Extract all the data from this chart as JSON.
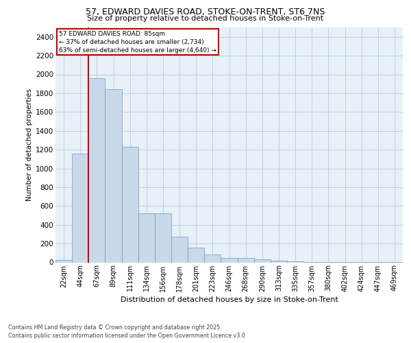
{
  "title_line1": "57, EDWARD DAVIES ROAD, STOKE-ON-TRENT, ST6 7NS",
  "title_line2": "Size of property relative to detached houses in Stoke-on-Trent",
  "xlabel": "Distribution of detached houses by size in Stoke-on-Trent",
  "ylabel": "Number of detached properties",
  "categories": [
    "22sqm",
    "44sqm",
    "67sqm",
    "89sqm",
    "111sqm",
    "134sqm",
    "156sqm",
    "178sqm",
    "201sqm",
    "223sqm",
    "246sqm",
    "268sqm",
    "290sqm",
    "313sqm",
    "335sqm",
    "357sqm",
    "380sqm",
    "402sqm",
    "424sqm",
    "447sqm",
    "469sqm"
  ],
  "values": [
    25,
    1155,
    1960,
    1845,
    1230,
    520,
    520,
    275,
    155,
    85,
    45,
    45,
    32,
    15,
    8,
    5,
    5,
    2,
    2,
    2,
    2
  ],
  "bar_color": "#c9d9ea",
  "bar_edge_color": "#6b9bbf",
  "vline_color": "#cc0000",
  "vline_x": 2.0,
  "property_label": "57 EDWARD DAVIES ROAD: 85sqm",
  "smaller_pct": 37,
  "smaller_count": 2734,
  "larger_pct": 63,
  "larger_count": 4640,
  "annotation_box_color": "#cc0000",
  "ylim": [
    0,
    2500
  ],
  "yticks": [
    0,
    200,
    400,
    600,
    800,
    1000,
    1200,
    1400,
    1600,
    1800,
    2000,
    2200,
    2400
  ],
  "grid_color": "#c0d0df",
  "background_color": "#e8f0f8",
  "footer_line1": "Contains HM Land Registry data © Crown copyright and database right 2025.",
  "footer_line2": "Contains public sector information licensed under the Open Government Licence v3.0."
}
